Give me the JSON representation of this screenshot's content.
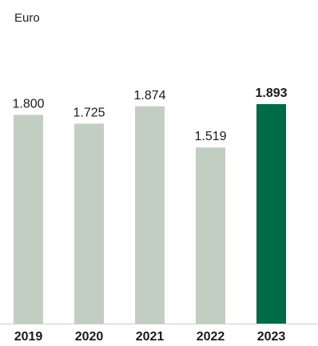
{
  "chart_data": {
    "type": "bar",
    "unit_label": "Euro",
    "categories": [
      "2019",
      "2020",
      "2021",
      "2022",
      "2023"
    ],
    "values": [
      1800,
      1725,
      1874,
      1519,
      1893
    ],
    "value_labels": [
      "1.800",
      "1.725",
      "1.874",
      "1.519",
      "1.893"
    ],
    "highlight_index": 4,
    "colors": {
      "bar": "#c3cec3",
      "highlight": "#006b47",
      "axis": "#c9d1c9"
    },
    "ylim": [
      0,
      1893
    ],
    "grid": false
  }
}
